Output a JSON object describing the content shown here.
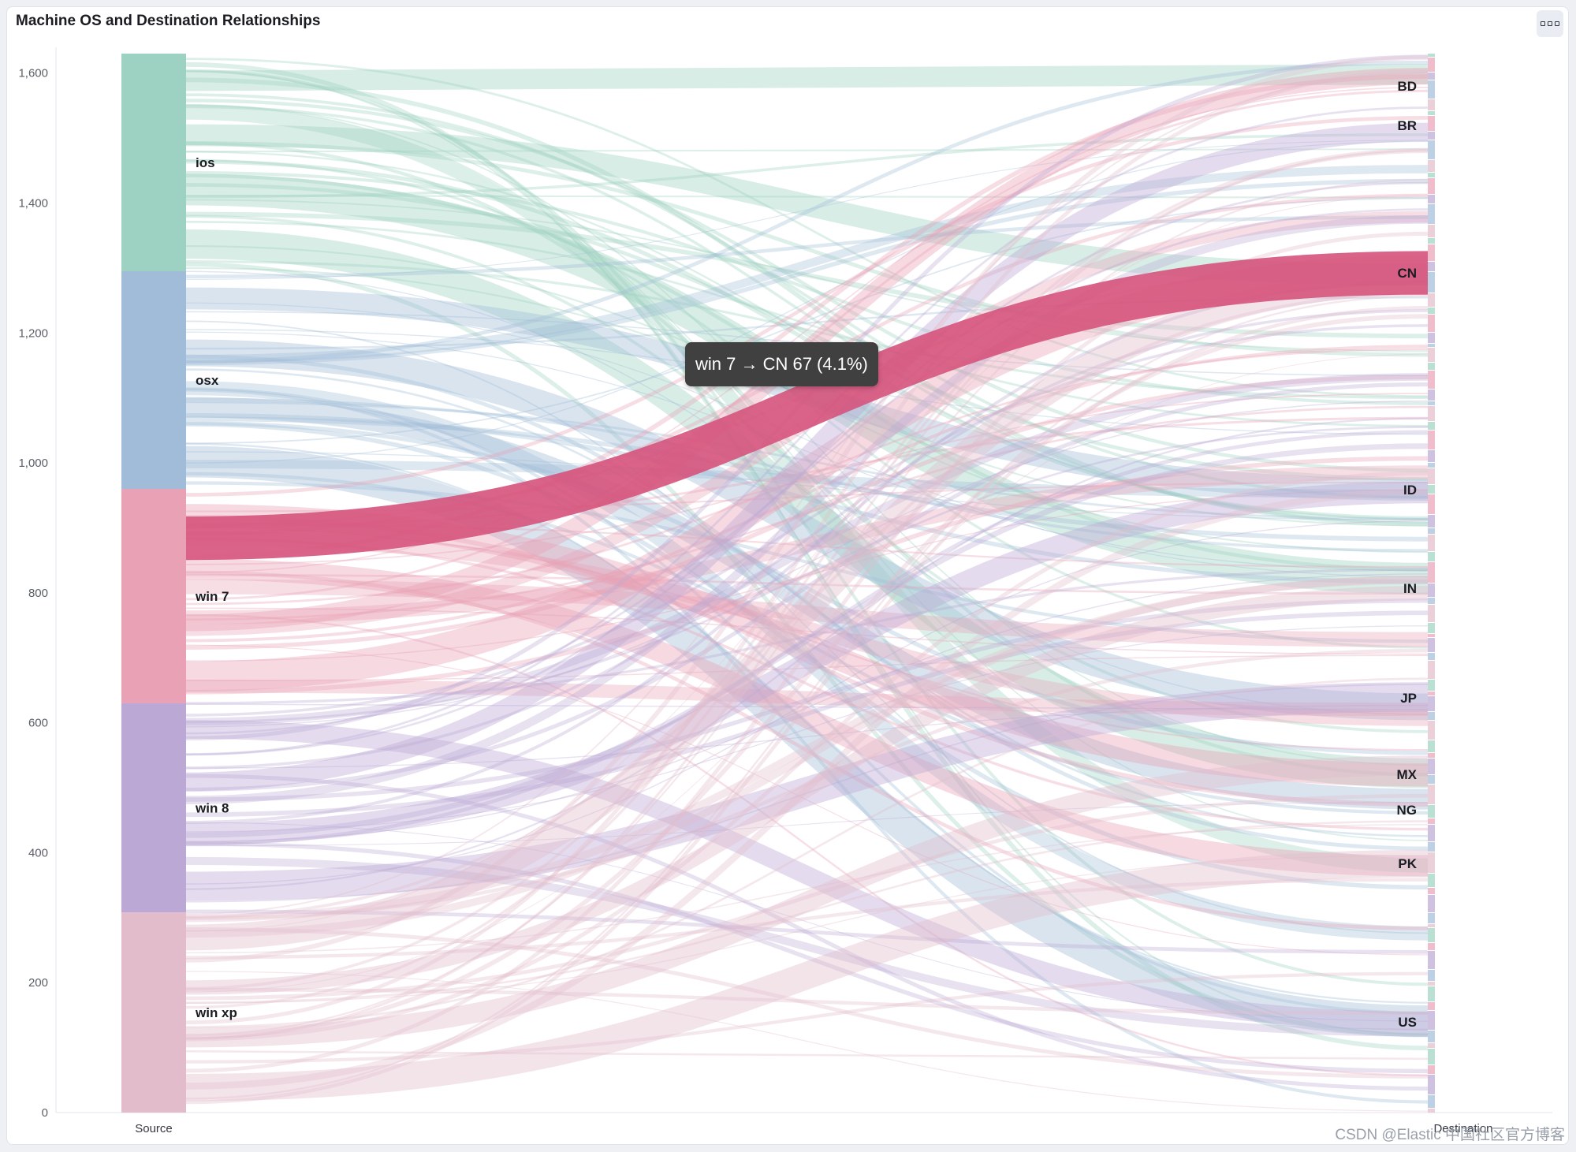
{
  "panel": {
    "title": "Machine OS and Destination Relationships",
    "menu_icon": "three-dots-icon"
  },
  "tooltip": {
    "text": "win 7 → CN 67 (4.1%)"
  },
  "watermark": "CSDN @Elastic 中国社区官方博客",
  "chart_data": {
    "type": "sankey",
    "title": "Machine OS and Destination Relationships",
    "xlabels": [
      "Source",
      "Destination"
    ],
    "yticks": [
      0,
      200,
      400,
      600,
      800,
      1000,
      1200,
      1400,
      1600
    ],
    "ylim": [
      0,
      1630
    ],
    "grid": false,
    "sources": [
      {
        "name": "ios",
        "value": 335,
        "color": "#9dd1c1"
      },
      {
        "name": "osx",
        "value": 335,
        "color": "#a1bcd8"
      },
      {
        "name": "win 7",
        "value": 330,
        "color": "#e8a1b5"
      },
      {
        "name": "win 8",
        "value": 322,
        "color": "#bba8d4"
      },
      {
        "name": "win xp",
        "value": 308,
        "color": "#e2bccb"
      }
    ],
    "destination_labels": [
      "BD",
      "BR",
      "CN",
      "ID",
      "IN",
      "JP",
      "MX",
      "NG",
      "PK",
      "US"
    ],
    "highlighted_link": {
      "source": "win 7",
      "target": "CN",
      "value": 67,
      "percent": "4.1%",
      "color": "#d6537c"
    }
  }
}
